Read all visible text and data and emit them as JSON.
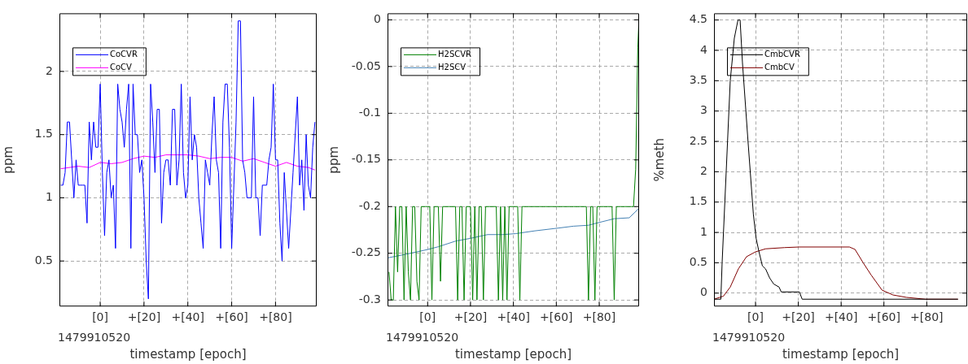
{
  "chart_data": [
    {
      "type": "line",
      "xlabel": "timestamp [epoch]",
      "ylabel": "ppm",
      "annotations": [
        "1479910520"
      ],
      "grid": true,
      "legend": "top left",
      "xlim": [
        -18.6,
        98.8
      ],
      "ylim": [
        0.14,
        2.46
      ],
      "xticks": [
        {
          "value": 0,
          "label": "[0]"
        },
        {
          "value": 20,
          "label": "+[20]"
        },
        {
          "value": 40,
          "label": "+[40]"
        },
        {
          "value": 60,
          "label": "+[60]"
        },
        {
          "value": 80,
          "label": "+[80]"
        }
      ],
      "yticks": [
        0.5,
        1,
        1.5,
        2
      ],
      "series": [
        {
          "name": "CoCVR",
          "color": "#0000ff",
          "x": [
            -18,
            -17,
            -16,
            -15,
            -14,
            -13,
            -12,
            -11,
            -10,
            -9,
            -8,
            -7,
            -6,
            -5,
            -4,
            -3,
            -2,
            -1,
            0,
            1,
            2,
            3,
            4,
            5,
            6,
            7,
            8,
            9,
            10,
            11,
            12,
            13,
            14,
            15,
            16,
            17,
            18,
            19,
            20,
            21,
            22,
            23,
            24,
            25,
            26,
            27,
            28,
            29,
            30,
            31,
            32,
            33,
            34,
            35,
            36,
            37,
            38,
            39,
            40,
            41,
            42,
            43,
            44,
            45,
            46,
            47,
            48,
            49,
            50,
            51,
            52,
            53,
            54,
            55,
            56,
            57,
            58,
            59,
            60,
            61,
            62,
            63,
            64,
            65,
            66,
            67,
            68,
            69,
            70,
            71,
            72,
            73,
            74,
            75,
            76,
            77,
            78,
            79,
            80,
            81,
            82,
            83,
            84,
            85,
            86,
            87,
            88,
            89,
            90,
            91,
            92,
            93,
            94,
            95,
            96,
            97,
            98
          ],
          "values": [
            1.1,
            1.1,
            1.2,
            1.6,
            1.6,
            1.3,
            1.0,
            1.3,
            1.1,
            1.1,
            1.1,
            1.1,
            0.8,
            1.6,
            1.3,
            1.6,
            1.4,
            1.4,
            1.9,
            1.2,
            0.7,
            1.2,
            1.3,
            1.0,
            1.1,
            0.6,
            1.9,
            1.7,
            1.6,
            1.4,
            1.7,
            1.9,
            0.6,
            1.9,
            1.5,
            1.5,
            1.2,
            1.3,
            1.0,
            0.5,
            0.2,
            1.9,
            1.6,
            1.2,
            1.7,
            1.7,
            0.8,
            1.2,
            1.3,
            1.3,
            1.1,
            1.7,
            1.7,
            1.1,
            1.3,
            1.9,
            1.2,
            1.0,
            1.1,
            1.8,
            1.3,
            1.5,
            1.4,
            1.0,
            0.8,
            0.6,
            1.3,
            1.2,
            1.1,
            1.5,
            1.8,
            1.3,
            1.2,
            0.6,
            1.6,
            1.9,
            1.9,
            1.4,
            0.6,
            1.1,
            1.6,
            2.4,
            2.4,
            1.3,
            1.2,
            1.0,
            1.0,
            1.0,
            1.8,
            1.0,
            1.0,
            0.7,
            1.1,
            1.1,
            1.1,
            1.3,
            1.4,
            1.9,
            1.3,
            1.3,
            0.8,
            0.5,
            1.2,
            0.9,
            0.6,
            0.9,
            1.2,
            1.5,
            1.8,
            1.1,
            1.3,
            0.9,
            1.5,
            1.1,
            1.0,
            1.4,
            1.6
          ]
        },
        {
          "name": "CoCV",
          "color": "#ff00ff",
          "x": [
            -18,
            -10,
            -5,
            0,
            5,
            10,
            15,
            20,
            25,
            30,
            35,
            40,
            45,
            50,
            55,
            60,
            65,
            70,
            75,
            80,
            85,
            90,
            95,
            98
          ],
          "values": [
            1.23,
            1.25,
            1.24,
            1.28,
            1.27,
            1.28,
            1.31,
            1.33,
            1.32,
            1.34,
            1.34,
            1.34,
            1.33,
            1.31,
            1.32,
            1.32,
            1.29,
            1.31,
            1.28,
            1.25,
            1.28,
            1.25,
            1.24,
            1.22
          ]
        }
      ]
    },
    {
      "type": "line",
      "xlabel": "timestamp [epoch]",
      "ylabel": "ppm",
      "annotations": [
        "1479910520"
      ],
      "grid": true,
      "legend": "top left",
      "xlim": [
        -18.7,
        98.6
      ],
      "ylim": [
        -0.307,
        0.007
      ],
      "xticks": [
        {
          "value": 0,
          "label": "[0]"
        },
        {
          "value": 20,
          "label": "+[20]"
        },
        {
          "value": 40,
          "label": "+[40]"
        },
        {
          "value": 60,
          "label": "+[60]"
        },
        {
          "value": 80,
          "label": "+[80]"
        }
      ],
      "yticks": [
        -0.3,
        -0.25,
        -0.2,
        -0.15,
        -0.1,
        -0.05,
        0
      ],
      "series": [
        {
          "name": "H2SCVR",
          "color": "#008000",
          "x": [
            -18,
            -17,
            -16,
            -15,
            -14,
            -13,
            -12,
            -11,
            -10,
            -9,
            -8,
            -7,
            -6,
            -5,
            -4,
            -3,
            -2,
            -1,
            0,
            1,
            2,
            3,
            4,
            5,
            6,
            7,
            8,
            9,
            10,
            11,
            12,
            13,
            14,
            15,
            16,
            17,
            18,
            19,
            20,
            21,
            22,
            23,
            24,
            25,
            26,
            27,
            28,
            29,
            30,
            31,
            32,
            33,
            34,
            35,
            36,
            37,
            38,
            39,
            40,
            41,
            42,
            43,
            44,
            45,
            46,
            47,
            48,
            49,
            50,
            51,
            52,
            53,
            54,
            55,
            56,
            57,
            58,
            59,
            60,
            61,
            62,
            63,
            64,
            65,
            66,
            67,
            68,
            69,
            70,
            71,
            72,
            73,
            74,
            75,
            76,
            77,
            78,
            79,
            80,
            81,
            82,
            83,
            84,
            85,
            86,
            87,
            88,
            89,
            90,
            91,
            92,
            93,
            94,
            95,
            96,
            97,
            98,
            98.5
          ],
          "values": [
            -0.27,
            -0.3,
            -0.3,
            -0.2,
            -0.27,
            -0.2,
            -0.2,
            -0.3,
            -0.2,
            -0.27,
            -0.3,
            -0.2,
            -0.2,
            -0.28,
            -0.3,
            -0.2,
            -0.2,
            -0.2,
            -0.2,
            -0.2,
            -0.3,
            -0.2,
            -0.2,
            -0.2,
            -0.28,
            -0.2,
            -0.2,
            -0.2,
            -0.2,
            -0.2,
            -0.2,
            -0.2,
            -0.3,
            -0.2,
            -0.2,
            -0.3,
            -0.2,
            -0.2,
            -0.2,
            -0.3,
            -0.2,
            -0.3,
            -0.2,
            -0.2,
            -0.3,
            -0.2,
            -0.2,
            -0.2,
            -0.2,
            -0.2,
            -0.2,
            -0.3,
            -0.2,
            -0.3,
            -0.2,
            -0.3,
            -0.2,
            -0.2,
            -0.2,
            -0.2,
            -0.2,
            -0.3,
            -0.2,
            -0.2,
            -0.2,
            -0.2,
            -0.2,
            -0.2,
            -0.2,
            -0.2,
            -0.2,
            -0.2,
            -0.2,
            -0.2,
            -0.2,
            -0.2,
            -0.2,
            -0.2,
            -0.2,
            -0.2,
            -0.2,
            -0.2,
            -0.2,
            -0.2,
            -0.2,
            -0.2,
            -0.2,
            -0.2,
            -0.2,
            -0.2,
            -0.2,
            -0.2,
            -0.2,
            -0.3,
            -0.2,
            -0.2,
            -0.3,
            -0.2,
            -0.2,
            -0.2,
            -0.2,
            -0.2,
            -0.2,
            -0.2,
            -0.2,
            -0.3,
            -0.2,
            -0.2,
            -0.2,
            -0.2,
            -0.2,
            -0.2,
            -0.2,
            -0.2,
            -0.2,
            -0.16,
            -0.03,
            0
          ]
        },
        {
          "name": "H2SCV",
          "color": "#4682b4",
          "x": [
            -18.7,
            -10,
            0,
            5,
            13,
            20,
            28,
            35,
            41,
            50,
            61,
            68,
            75,
            80,
            87,
            94,
            98.5
          ],
          "values": [
            -0.255,
            -0.251,
            -0.246,
            -0.243,
            -0.237,
            -0.234,
            -0.23,
            -0.23,
            -0.229,
            -0.226,
            -0.223,
            -0.221,
            -0.22,
            -0.217,
            -0.213,
            -0.212,
            -0.202
          ]
        }
      ]
    },
    {
      "type": "line",
      "xlabel": "timestamp [epoch]",
      "ylabel": "%meth",
      "annotations": [
        "1479910520"
      ],
      "grid": true,
      "legend": "top left",
      "xlim": [
        -19.4,
        98.9
      ],
      "ylim": [
        -0.22,
        4.61
      ],
      "xticks": [
        {
          "value": 0,
          "label": "[0]"
        },
        {
          "value": 20,
          "label": "+[20]"
        },
        {
          "value": 40,
          "label": "+[40]"
        },
        {
          "value": 60,
          "label": "+[60]"
        },
        {
          "value": 80,
          "label": "+[80]"
        }
      ],
      "yticks": [
        0,
        0.5,
        1,
        1.5,
        2,
        2.5,
        3,
        3.5,
        4,
        4.5
      ],
      "series": [
        {
          "name": "CmbCVR",
          "color": "#000000",
          "x": [
            -19.4,
            -16.2,
            -15.6,
            -13.7,
            -11.8,
            -9.9,
            -8.2,
            -7.2,
            -6.1,
            -3.5,
            -1,
            0.3,
            1.5,
            3.2,
            4.7,
            6.6,
            8.5,
            11,
            12,
            20.5,
            21.8,
            94.6
          ],
          "values": [
            -0.1,
            -0.1,
            0.5,
            2.0,
            3.5,
            4.2,
            4.5,
            4.5,
            3.8,
            2.5,
            1.3,
            0.9,
            0.7,
            0.45,
            0.4,
            0.25,
            0.15,
            0.1,
            0.02,
            0.02,
            -0.1,
            -0.1
          ]
        },
        {
          "name": "CmbCV",
          "color": "#800000",
          "x": [
            -19.4,
            -15,
            -11.8,
            -8,
            -4.2,
            0,
            4.7,
            13.5,
            20.5,
            43.9,
            46.5,
            50.3,
            54,
            59.1,
            64.2,
            70.5,
            79.4,
            94.6
          ],
          "values": [
            -0.1,
            -0.05,
            0.1,
            0.4,
            0.6,
            0.68,
            0.73,
            0.75,
            0.76,
            0.76,
            0.72,
            0.5,
            0.3,
            0.05,
            -0.03,
            -0.07,
            -0.1,
            -0.1
          ]
        }
      ]
    }
  ]
}
